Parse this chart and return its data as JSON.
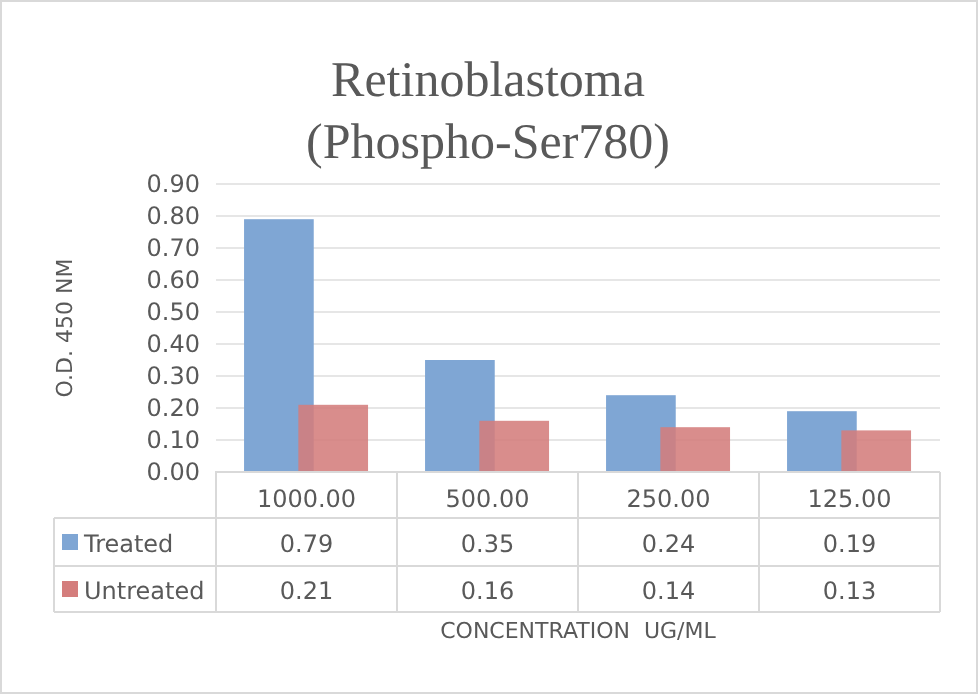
{
  "chart_data": {
    "type": "bar",
    "title": "Retinoblastoma\n(Phospho-Ser780)",
    "xlabel": "CONCENTRATION  UG/ML",
    "ylabel": "O.D. 450 NM",
    "categories": [
      "1000.00",
      "500.00",
      "250.00",
      "125.00"
    ],
    "series": [
      {
        "name": "Treated",
        "color": "#7fa6d4",
        "values": [
          0.79,
          0.35,
          0.24,
          0.19
        ]
      },
      {
        "name": "Untreated",
        "color": "#d47d7c",
        "values": [
          0.21,
          0.16,
          0.14,
          0.13
        ]
      }
    ],
    "ylim": [
      0,
      0.9
    ],
    "yticks": [
      {
        "value": 0,
        "label": "0.00"
      },
      {
        "value": 0.1,
        "label": "0.10"
      },
      {
        "value": 0.2,
        "label": "0.20"
      },
      {
        "value": 0.3,
        "label": "0.30"
      },
      {
        "value": 0.4,
        "label": "0.40"
      },
      {
        "value": 0.5,
        "label": "0.50"
      },
      {
        "value": 0.6,
        "label": "0.60"
      },
      {
        "value": 0.7,
        "label": "0.70"
      },
      {
        "value": 0.8,
        "label": "0.80"
      },
      {
        "value": 0.9,
        "label": "0.90"
      }
    ],
    "grid": "y",
    "data_labels": true,
    "legend": "bottom left"
  }
}
